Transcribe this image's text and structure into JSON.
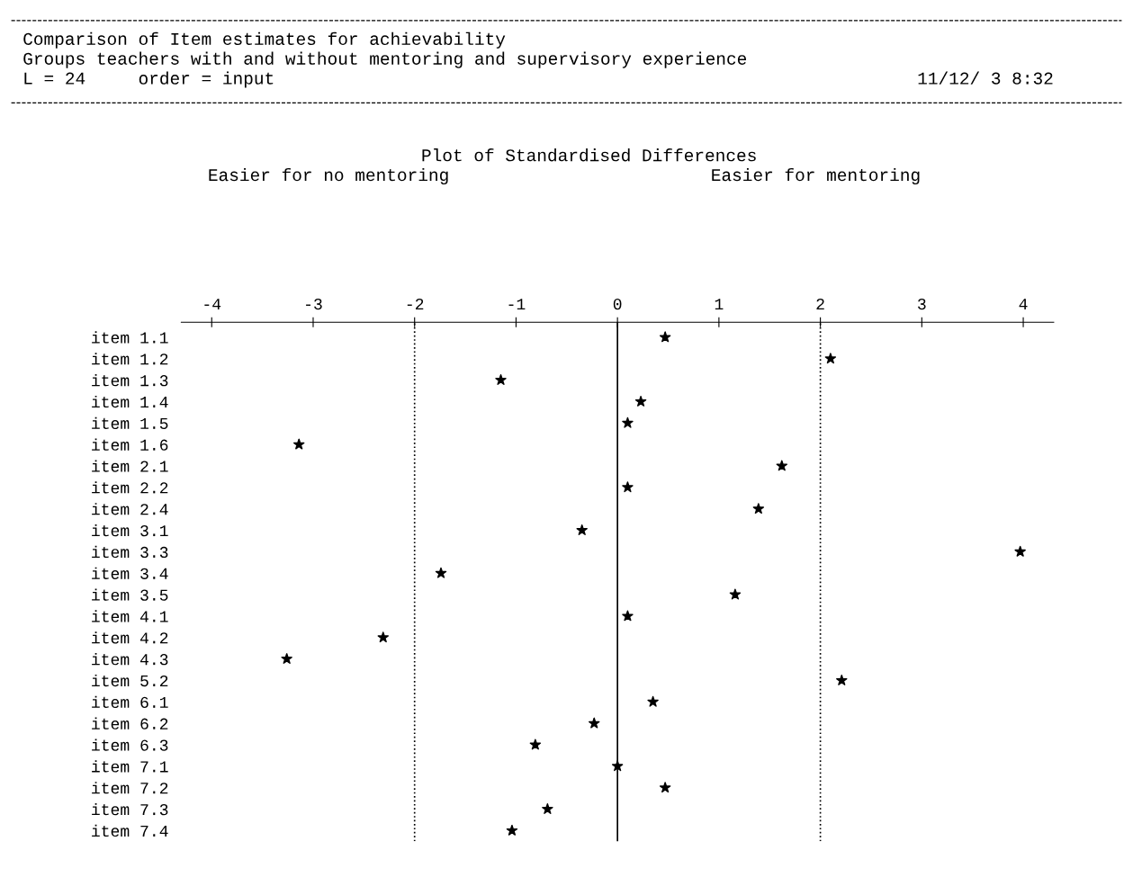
{
  "chart_data": {
    "type": "scatter",
    "title": "Comparison of Item estimates for achievability",
    "subtitle": "Groups teachers with and without mentoring and supervisory experience",
    "annotations": [
      "L = 24     order = input",
      "11/12/ 3 8:32",
      "Plot of Standardised Differences",
      "Easier for no mentoring",
      "Easier for mentoring"
    ],
    "categories": [
      "item 1.1",
      "item 1.2",
      "item 1.3",
      "item 1.4",
      "item 1.5",
      "item 1.6",
      "item 2.1",
      "item 2.2",
      "item 2.4",
      "item 3.1",
      "item 3.3",
      "item 3.4",
      "item 3.5",
      "item 4.1",
      "item 4.2",
      "item 4.3",
      "item 5.2",
      "item 6.1",
      "item 6.2",
      "item 6.3",
      "item 7.1",
      "item 7.2",
      "item 7.3",
      "item 7.4"
    ],
    "orientation": "horizontal",
    "values": [
      0.47,
      2.1,
      -1.15,
      0.23,
      0.1,
      -3.14,
      1.62,
      0.1,
      1.39,
      -0.35,
      3.97,
      -1.74,
      1.16,
      0.1,
      -2.31,
      -3.26,
      2.21,
      0.35,
      -0.23,
      -0.81,
      0.0,
      0.47,
      -0.69,
      -1.04
    ],
    "color": "#000000",
    "marker": "star",
    "xlim": [
      -4.3,
      4.3
    ],
    "xticks": [
      -4,
      -3,
      -2,
      -1,
      0,
      1,
      2,
      3,
      4
    ],
    "ref_lines": [
      {
        "axis": "x",
        "value": -2,
        "line_style": "dotted",
        "color": "#000000"
      },
      {
        "axis": "x",
        "value": 0,
        "line_style": "solid",
        "color": "#000000"
      },
      {
        "axis": "x",
        "value": 2,
        "line_style": "dotted",
        "color": "#000000"
      }
    ],
    "grid": false,
    "legend": false
  }
}
